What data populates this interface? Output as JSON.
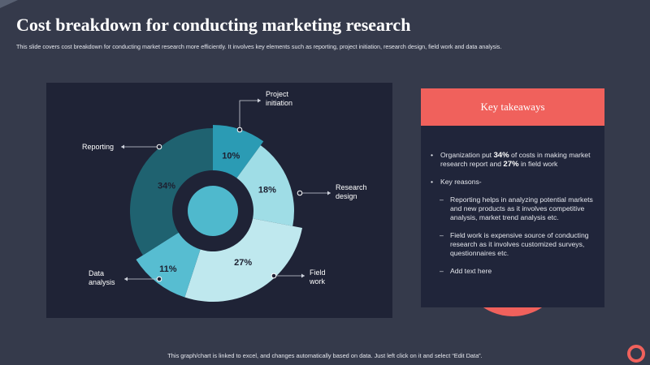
{
  "header": {
    "title": "Cost breakdown for conducting marketing research",
    "subtitle": "This slide covers cost breakdown for conducting market research more efficiently. It involves key elements such as reporting, project initiation, research design, field work  and data analysis."
  },
  "chart_data": {
    "type": "pie",
    "variant": "donut",
    "title": "",
    "slices": [
      {
        "label": "Project initiation",
        "label_lines": [
          "Project",
          "initiation"
        ],
        "value": 10,
        "value_label": "10%",
        "color": "#2b9bb4"
      },
      {
        "label": "Research design",
        "label_lines": [
          "Research",
          "design"
        ],
        "value": 18,
        "value_label": "18%",
        "color": "#9fdde6"
      },
      {
        "label": "Field work",
        "label_lines": [
          "Field",
          "work"
        ],
        "value": 27,
        "value_label": "27%",
        "color": "#bfe8ee"
      },
      {
        "label": "Data analysis",
        "label_lines": [
          "Data",
          "analysis"
        ],
        "value": 11,
        "value_label": "11%",
        "color": "#57bdd1"
      },
      {
        "label": "Reporting",
        "label_lines": [
          "Reporting"
        ],
        "value": 34,
        "value_label": "34%",
        "color": "#1f6270"
      }
    ],
    "center_color": "#4fb9cd",
    "legend": "callout-labels"
  },
  "key_takeaways": {
    "title": "Key takeaways",
    "bullet1": {
      "mark": "•",
      "t1": "Organization put ",
      "b1": "34%",
      "t2": " of costs in making market research report and ",
      "b2": "27%",
      "t3": " in field work"
    },
    "bullet2": {
      "mark": "•",
      "text": "Key reasons-"
    },
    "subs": [
      {
        "mark": "–",
        "text": "Reporting helps in analyzing potential markets and new products as it involves competitive analysis, market trend analysis etc."
      },
      {
        "mark": "–",
        "text": "Field work is expensive source of conducting research as it involves customized surveys, questionnaires etc."
      },
      {
        "mark": "–",
        "text": "Add text here"
      }
    ]
  },
  "footer": {
    "text": "This graph/chart is linked to excel,  and changes automatically based on data. Just left click on it and select “Edit Data”."
  },
  "colors": {
    "background": "#353a4b",
    "panel": "#1f2336",
    "accent": "#f0615c"
  }
}
